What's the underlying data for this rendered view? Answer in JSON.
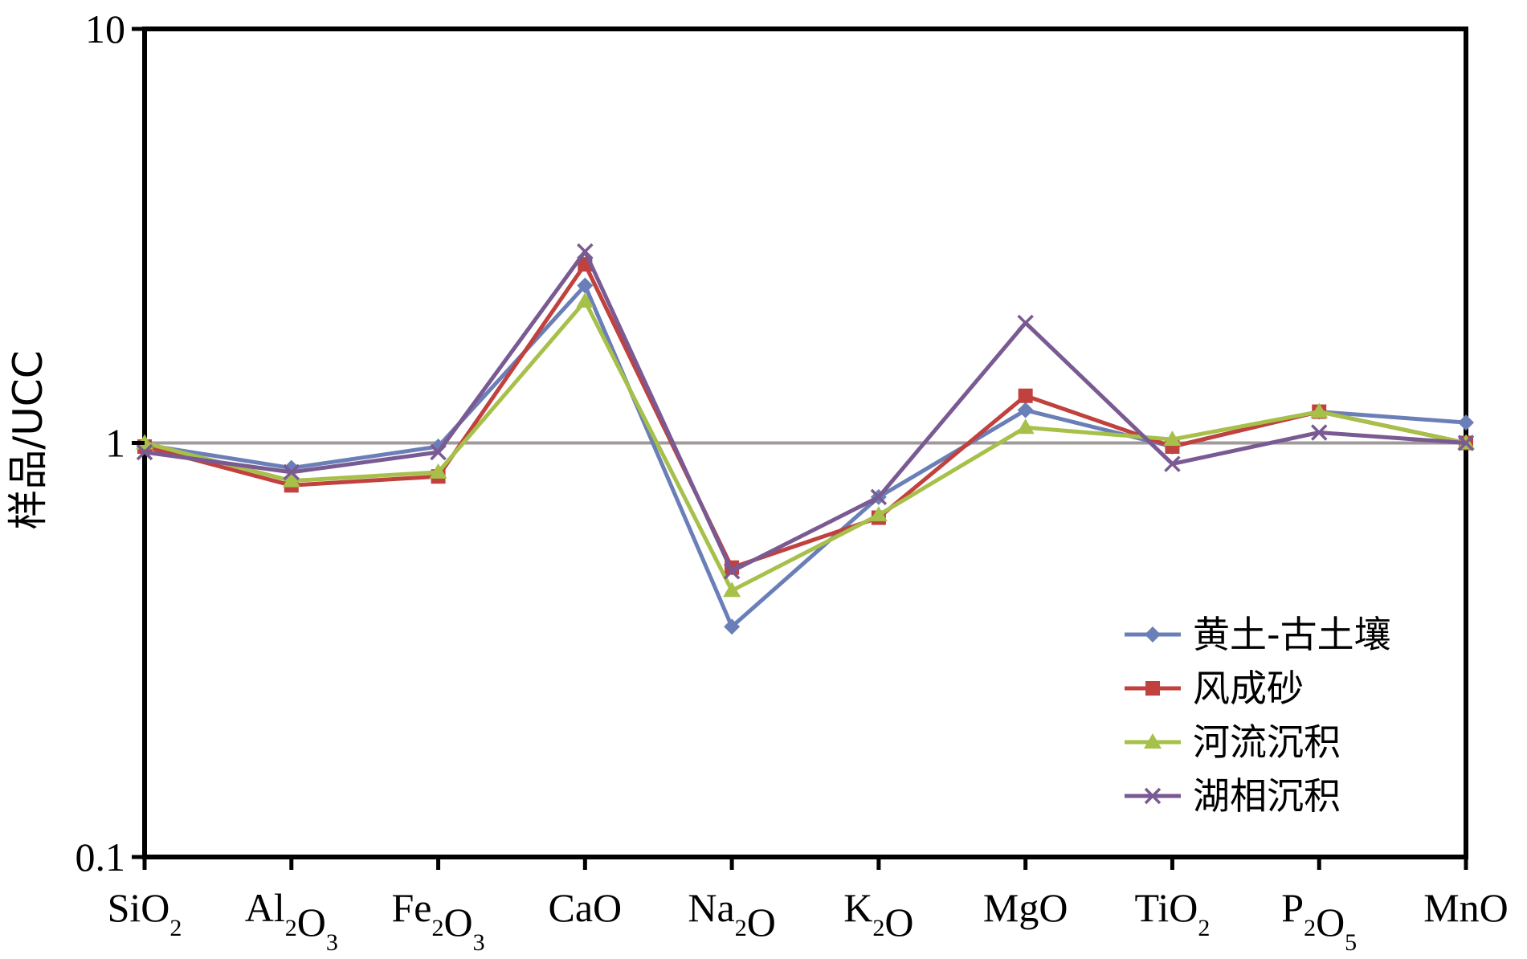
{
  "chart_data": {
    "type": "line",
    "ylabel": "样品/UCC",
    "xlabel": "",
    "yscale": "log",
    "ylim": [
      0.1,
      10
    ],
    "yticks": [
      "0.1",
      "1",
      "10"
    ],
    "reference_line": {
      "y": 1,
      "color": "#a09a9a"
    },
    "categories": [
      {
        "base": "SiO",
        "parts": [
          [
            "SiO",
            false
          ],
          [
            "2",
            true
          ]
        ]
      },
      {
        "base": "Al2O3",
        "parts": [
          [
            "Al",
            false
          ],
          [
            "2",
            true
          ],
          [
            "O",
            false
          ],
          [
            "3",
            true
          ]
        ]
      },
      {
        "base": "Fe2O3",
        "parts": [
          [
            "Fe",
            false
          ],
          [
            "2",
            true
          ],
          [
            "O",
            false
          ],
          [
            "3",
            true
          ]
        ]
      },
      {
        "base": "CaO",
        "parts": [
          [
            "CaO",
            false
          ]
        ]
      },
      {
        "base": "Na2O",
        "parts": [
          [
            "Na",
            false
          ],
          [
            "2",
            true
          ],
          [
            "O",
            false
          ]
        ]
      },
      {
        "base": "K2O",
        "parts": [
          [
            "K",
            false
          ],
          [
            "2",
            true
          ],
          [
            "O",
            false
          ]
        ]
      },
      {
        "base": "MgO",
        "parts": [
          [
            "MgO",
            false
          ]
        ]
      },
      {
        "base": "TiO2",
        "parts": [
          [
            "TiO",
            false
          ],
          [
            "2",
            true
          ]
        ]
      },
      {
        "base": "P2O5",
        "parts": [
          [
            "P",
            false
          ],
          [
            "2",
            true
          ],
          [
            "O",
            false
          ],
          [
            "5",
            true
          ]
        ]
      },
      {
        "base": "MnO",
        "parts": [
          [
            "MnO",
            false
          ]
        ]
      }
    ],
    "series": [
      {
        "name": "黄土-古土壤",
        "color": "#6a7fb8",
        "marker": "diamond",
        "values": [
          0.99,
          0.87,
          0.98,
          2.4,
          0.36,
          0.74,
          1.2,
          0.98,
          1.19,
          1.12
        ]
      },
      {
        "name": "风成砂",
        "color": "#c0413d",
        "marker": "square",
        "values": [
          0.98,
          0.79,
          0.83,
          2.7,
          0.5,
          0.66,
          1.3,
          0.98,
          1.19,
          1.0
        ]
      },
      {
        "name": "河流沉积",
        "color": "#a6c04a",
        "marker": "triangle",
        "values": [
          1.0,
          0.81,
          0.85,
          2.2,
          0.44,
          0.67,
          1.09,
          1.02,
          1.19,
          1.0
        ]
      },
      {
        "name": "湖相沉积",
        "color": "#7a5a92",
        "marker": "x",
        "values": [
          0.95,
          0.85,
          0.95,
          2.9,
          0.49,
          0.74,
          1.95,
          0.89,
          1.06,
          1.0
        ]
      }
    ],
    "legend": {
      "position": "lower-right"
    },
    "grid": false
  }
}
